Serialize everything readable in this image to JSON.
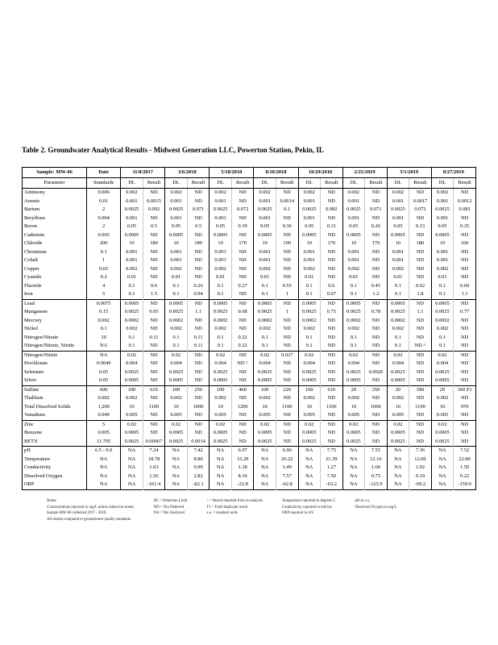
{
  "page": {
    "title": "Table 2. Groundwater Analytical Results - Midwest Generation LLC, Powerton Station, Pekin, IL"
  },
  "table": {
    "sample_label": "Sample:",
    "sample_id": "MW-06",
    "date_label": "Date",
    "param_header": "Parameter",
    "standards_header": "Standards",
    "dl_header": "DL",
    "result_header": "Result",
    "dates": [
      "11/8/2017",
      "3/6/2018",
      "5/18/2018",
      "8/10/2018",
      "10/29/2018",
      "2/25/2019",
      "5/1/2019",
      "8/27/2019"
    ],
    "groups": [
      {
        "rows": [
          {
            "param": "Antimony",
            "standard": "0.006",
            "cells": [
              "0.002",
              "ND",
              "0.002",
              "ND",
              "0.002",
              "ND",
              "0.002",
              "ND",
              "0.002",
              "ND",
              "0.002",
              "ND",
              "0.002",
              "ND",
              "0.002",
              "ND"
            ]
          },
          {
            "param": "Arsenic",
            "standard": "0.01",
            "cells": [
              "0.001",
              "0.0015",
              "0.001",
              "ND",
              "0.001",
              "ND",
              "0.001",
              "0.0014",
              "0.001",
              "ND",
              "0.001",
              "ND",
              "0.001",
              "0.0017",
              "0.001",
              "0.0012"
            ]
          },
          {
            "param": "Barium",
            "standard": "2",
            "cells": [
              "0.0025",
              "0.092",
              "0.0025",
              "0.071",
              "0.0025",
              "0.072",
              "0.0025",
              "0.1",
              "0.0025",
              "0.082",
              "0.0025",
              "0.071",
              "0.0025",
              "0.072",
              "0.0025",
              "0.081"
            ]
          },
          {
            "param": "Beryllium",
            "standard": "0.004",
            "cells": [
              "0.001",
              "ND",
              "0.001",
              "ND",
              "0.001",
              "ND",
              "0.001",
              "ND",
              "0.001",
              "ND",
              "0.001",
              "ND",
              "0.001",
              "ND",
              "0.001",
              "ND"
            ]
          },
          {
            "param": "Boron",
            "standard": "2",
            "cells": [
              "0.05",
              "0.5",
              "0.05",
              "0.5",
              "0.05",
              "0.39",
              "0.05",
              "0.36",
              "0.05",
              "0.31",
              "0.05",
              "0.26",
              "0.05",
              "0.33",
              "0.05",
              "0.35"
            ]
          },
          {
            "param": "Cadmium",
            "standard": "0.005",
            "cells": [
              "0.0005",
              "ND",
              "0.0005",
              "ND",
              "0.0005",
              "ND",
              "0.0005",
              "ND",
              "0.0005",
              "ND",
              "0.0005",
              "ND",
              "0.0005",
              "ND",
              "0.0005",
              "ND"
            ]
          },
          {
            "param": "Chloride",
            "standard": "200",
            "cells": [
              "10",
              "180",
              "10",
              "180",
              "10",
              "170",
              "10",
              "190",
              "10",
              "170",
              "10",
              "170",
              "10",
              "180",
              "10",
              "160"
            ]
          },
          {
            "param": "Chromium",
            "standard": "0.1",
            "cells": [
              "0.001",
              "ND",
              "0.001",
              "ND",
              "0.001",
              "ND",
              "0.001",
              "ND",
              "0.001",
              "ND",
              "0.001",
              "ND",
              "0.001",
              "ND",
              "0.001",
              "ND"
            ]
          },
          {
            "param": "Cobalt",
            "standard": "1",
            "cells": [
              "0.001",
              "ND",
              "0.001",
              "ND",
              "0.001",
              "ND",
              "0.001",
              "ND",
              "0.001",
              "ND",
              "0.001",
              "ND",
              "0.001",
              "ND",
              "0.001",
              "ND"
            ]
          },
          {
            "param": "Copper",
            "standard": "0.65",
            "cells": [
              "0.002",
              "ND",
              "0.002",
              "ND",
              "0.002",
              "ND",
              "0.002",
              "ND",
              "0.002",
              "ND",
              "0.002",
              "ND",
              "0.002",
              "ND",
              "0.002",
              "ND"
            ]
          },
          {
            "param": "Cyanide",
            "standard": "0.2",
            "cells": [
              "0.01",
              "ND",
              "0.01",
              "ND",
              "0.01",
              "ND",
              "0.01",
              "ND",
              "0.01",
              "ND",
              "0.01",
              "ND",
              "0.01",
              "ND",
              "0.01",
              "ND"
            ]
          },
          {
            "param": "Fluoride",
            "standard": "4",
            "cells": [
              "0.1",
              "0.6",
              "0.1",
              "0.26",
              "0.1",
              "0.27",
              "0.1",
              "0.55",
              "0.1",
              "0.6",
              "0.1",
              "0.45",
              "0.1",
              "0.62",
              "0.1",
              "0.69"
            ]
          },
          {
            "param": "Iron",
            "standard": "5",
            "cells": [
              "0.1",
              "1.5",
              "0.1",
              "0.94",
              "0.1",
              "ND",
              "0.1",
              "1",
              "0.1",
              "0.67",
              "0.1",
              "1.2",
              "0.1",
              "1.8",
              "0.1",
              "1.1"
            ]
          }
        ]
      },
      {
        "rows": [
          {
            "param": "Lead",
            "standard": "0.0075",
            "cells": [
              "0.0005",
              "ND",
              "0.0005",
              "ND",
              "0.0005",
              "ND",
              "0.0005",
              "ND",
              "0.0005",
              "ND",
              "0.0005",
              "ND",
              "0.0005",
              "ND",
              "0.0005",
              "ND"
            ]
          },
          {
            "param": "Manganese",
            "standard": "0.15",
            "cells": [
              "0.0025",
              "0.95",
              "0.0025",
              "1.1",
              "0.0025",
              "0.68",
              "0.0025",
              "1",
              "0.0025",
              "0.75",
              "0.0025",
              "0.78",
              "0.0025",
              "1.1",
              "0.0025",
              "0.77"
            ]
          },
          {
            "param": "Mercury",
            "standard": "0.002",
            "cells": [
              "0.0002",
              "ND",
              "0.0002",
              "ND",
              "0.0002",
              "ND",
              "0.0002",
              "ND",
              "0.0002",
              "ND",
              "0.0002",
              "ND",
              "0.0002",
              "ND",
              "0.0002",
              "ND"
            ]
          },
          {
            "param": "Nickel",
            "standard": "0.1",
            "cells": [
              "0.002",
              "ND",
              "0.002",
              "ND",
              "0.002",
              "ND",
              "0.002",
              "ND",
              "0.002",
              "ND",
              "0.002",
              "ND",
              "0.002",
              "ND",
              "0.002",
              "ND"
            ]
          },
          {
            "param": "Nitrogen/Nitrate",
            "standard": "10",
            "cells": [
              "0.1",
              "0.11",
              "0.1",
              "0.11",
              "0.1",
              "0.22",
              "0.1",
              "ND",
              "0.1",
              "ND",
              "0.1",
              "ND",
              "0.1",
              "ND",
              "0.1",
              "ND"
            ]
          },
          {
            "param": "Nitrogen/Nitrate, Nitrite",
            "standard": "NA",
            "cells": [
              "0.1",
              "ND",
              "0.1",
              "0.11",
              "0.1",
              "0.22",
              "0.1",
              "ND",
              "0.1",
              "ND",
              "0.1",
              "ND",
              "0.1",
              "ND ^",
              "0.1",
              "ND"
            ]
          }
        ]
      },
      {
        "rows": [
          {
            "param": "Nitrogen/Nitrite",
            "standard": "NA",
            "cells": [
              "0.02",
              "ND",
              "0.02",
              "ND",
              "0.02",
              "ND",
              "0.02",
              "0.037",
              "0.02",
              "ND",
              "0.02",
              "ND",
              "0.02",
              "ND",
              "0.02",
              "ND"
            ]
          },
          {
            "param": "Perchlorate",
            "standard": "0.0049",
            "cells": [
              "0.004",
              "ND",
              "0.004",
              "ND",
              "0.004",
              "ND ^",
              "0.004",
              "ND",
              "0.004",
              "ND",
              "0.004",
              "ND",
              "0.004",
              "ND",
              "0.004",
              "ND"
            ]
          },
          {
            "param": "Selenium",
            "standard": "0.05",
            "cells": [
              "0.0025",
              "ND",
              "0.0025",
              "ND",
              "0.0025",
              "ND",
              "0.0025",
              "ND",
              "0.0025",
              "ND",
              "0.0025",
              "0.0026",
              "0.0025",
              "ND",
              "0.0025",
              "ND"
            ]
          },
          {
            "param": "Silver",
            "standard": "0.05",
            "cells": [
              "0.0005",
              "ND",
              "0.0005",
              "ND",
              "0.0005",
              "ND",
              "0.0005",
              "ND",
              "0.0005",
              "ND",
              "0.0005",
              "ND",
              "0.0005",
              "ND",
              "0.0005",
              "ND"
            ]
          }
        ]
      },
      {
        "rows": [
          {
            "param": "Sulfate",
            "standard": "600",
            "cells": [
              "100",
              "610",
              "100",
              "250",
              "100",
              "460",
              "100",
              "220",
              "100",
              "610",
              "20",
              "350",
              "20",
              "390",
              "20",
              "360 F1"
            ]
          },
          {
            "param": "Thallium",
            "standard": "0.002",
            "cells": [
              "0.002",
              "ND",
              "0.002",
              "ND",
              "0.002",
              "ND",
              "0.002",
              "ND",
              "0.002",
              "ND",
              "0.002",
              "ND",
              "0.002",
              "ND",
              "0.002",
              "ND"
            ]
          },
          {
            "param": "Total Dissolved Solids",
            "standard": "1,200",
            "cells": [
              "10",
              "1100",
              "10",
              "1000",
              "10",
              "1200",
              "10",
              "1100",
              "10",
              "1100",
              "10",
              "1000",
              "10",
              "1100",
              "10",
              "970"
            ]
          },
          {
            "param": "Vanadium",
            "standard": "0.049",
            "cells": [
              "0.005",
              "ND",
              "0.005",
              "ND",
              "0.005",
              "ND",
              "0.005",
              "ND",
              "0.005",
              "ND",
              "0.005",
              "ND",
              "0.005",
              "ND",
              "0.005",
              "ND"
            ]
          }
        ]
      },
      {
        "rows": [
          {
            "param": "Zinc",
            "standard": "5",
            "cells": [
              "0.02",
              "ND",
              "0.02",
              "ND",
              "0.02",
              "ND",
              "0.02",
              "ND",
              "0.02",
              "ND",
              "0.02",
              "ND",
              "0.02",
              "ND",
              "0.02",
              "ND"
            ]
          },
          {
            "param": "Benzene",
            "standard": "0.005",
            "cells": [
              "0.0005",
              "ND",
              "0.0005",
              "ND",
              "0.0005",
              "ND",
              "0.0005",
              "ND",
              "0.0005",
              "ND",
              "0.0005",
              "ND",
              "0.0005",
              "ND",
              "0.0005",
              "ND"
            ]
          },
          {
            "param": "BETX",
            "standard": "11.705",
            "cells": [
              "0.0025",
              "0.00067",
              "0.0025",
              "0.0014",
              "0.0025",
              "ND",
              "0.0025",
              "ND",
              "0.0025",
              "ND",
              "0.0025",
              "ND",
              "0.0025",
              "ND",
              "0.0025",
              "ND"
            ]
          }
        ]
      },
      {
        "rows": [
          {
            "param": "pH",
            "standard": "6.5 - 9.0",
            "cells": [
              "NA",
              "7.24",
              "NA",
              "7.42",
              "NA",
              "6.97",
              "NA",
              "6.96",
              "NA",
              "7.75",
              "NA",
              "7.55",
              "NA",
              "7.36",
              "NA",
              "7.52"
            ]
          },
          {
            "param": "Temperature",
            "standard": "NA",
            "cells": [
              "NA",
              "18.78",
              "NA",
              "8.80",
              "NA",
              "15.29",
              "NA",
              "26.22",
              "NA",
              "21.39",
              "NA",
              "12.10",
              "NA",
              "12.60",
              "NA",
              "22.80"
            ]
          },
          {
            "param": "Conductivity",
            "standard": "NA",
            "cells": [
              "NA",
              "1.63",
              "NA",
              "0.99",
              "NA",
              "1.18",
              "NA",
              "1.49",
              "NA",
              "1.27",
              "NA",
              "1.60",
              "NA",
              "1.02",
              "NA",
              "1.50"
            ]
          },
          {
            "param": "Dissolved Oxygen",
            "standard": "NA",
            "cells": [
              "NA",
              "1.56",
              "NA",
              "2.82",
              "NA",
              "8.16",
              "NA",
              "7.57",
              "NA",
              "7.50",
              "NA",
              "0.75",
              "NA",
              "0.19",
              "NA",
              "0.22"
            ]
          },
          {
            "param": "ORP",
            "standard": "NA",
            "cells": [
              "NA",
              "-161.4",
              "NA",
              "-82.1",
              "NA",
              "-22.8",
              "NA",
              "-62.8",
              "NA",
              "-63.2",
              "NA",
              "-125.9",
              "NA",
              "-69.2",
              "NA",
              "-159.0"
            ]
          }
        ]
      }
    ]
  },
  "footnotes": {
    "columns": [
      {
        "lines": [
          "Notes:",
          "Concentrations reported in mg/L unless otherwise noted.",
          "Sample MW-06 collected 2017 - 2019.",
          "All results compared to groundwater quality standards."
        ]
      },
      {
        "lines": [
          "DL = Detection Limit",
          "ND = Not Detected",
          "NA = Not Analyzed"
        ]
      },
      {
        "lines": [
          "^ = Result reported from re-analysis",
          "F1 = Field duplicate result",
          "s.u. = standard units"
        ]
      },
      {
        "lines": [
          "Temperature reported in degrees C",
          "Conductivity reported in mS/cm",
          "ORP reported in mV"
        ]
      },
      {
        "lines": [
          "pH in s.u.",
          "Dissolved Oxygen in mg/L"
        ]
      }
    ]
  }
}
